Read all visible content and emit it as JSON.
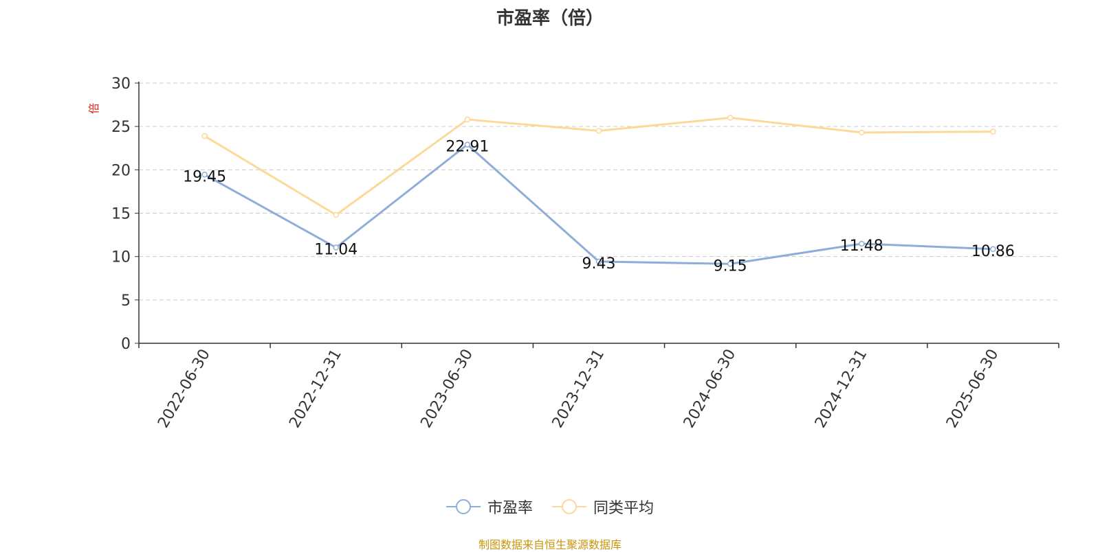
{
  "chart_data": {
    "type": "line",
    "title": "市盈率（倍）",
    "ylabel": "倍",
    "xlabel": "",
    "categories": [
      "2022-06-30",
      "2022-12-31",
      "2023-06-30",
      "2023-12-31",
      "2024-06-30",
      "2024-12-31",
      "2025-06-30"
    ],
    "ylim": [
      0,
      30
    ],
    "yticks": [
      "0",
      "5",
      "10",
      "15",
      "20",
      "25",
      "30"
    ],
    "grid": true,
    "legend_position": "bottom-center",
    "series": [
      {
        "name": "市盈率",
        "color": "#8eaed9",
        "values": [
          19.45,
          11.04,
          22.91,
          9.43,
          9.15,
          11.48,
          10.86
        ],
        "labels": [
          "19.45",
          "11.04",
          "22.91",
          "9.43",
          "9.15",
          "11.48",
          "10.86"
        ]
      },
      {
        "name": "同类平均",
        "color": "#fcd998",
        "values": [
          23.9,
          14.8,
          25.8,
          24.5,
          26.0,
          24.3,
          24.4
        ]
      }
    ]
  },
  "footer": "制图数据来自恒生聚源数据库",
  "colors": {
    "axis": "#333333",
    "grid": "#cccccc",
    "ylabel": "#e02020",
    "footer": "#c8960c"
  }
}
